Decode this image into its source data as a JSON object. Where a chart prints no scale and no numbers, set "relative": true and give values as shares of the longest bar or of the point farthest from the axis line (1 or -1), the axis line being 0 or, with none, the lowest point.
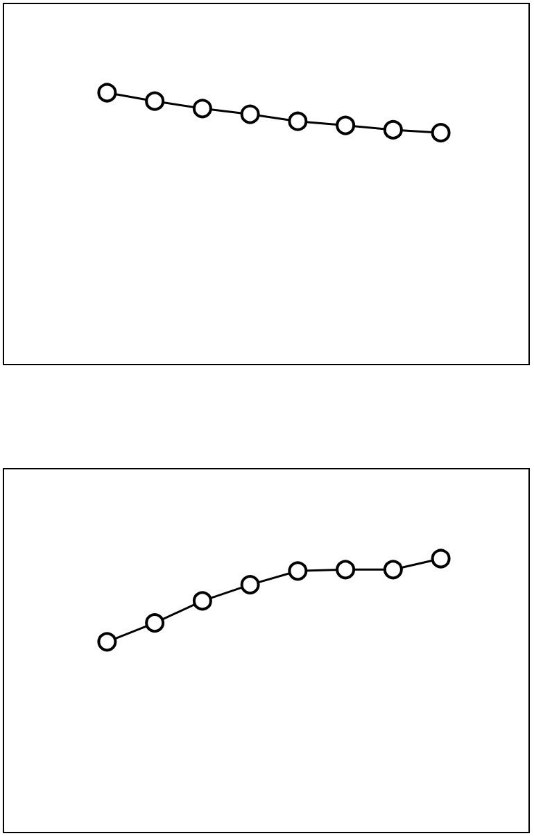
{
  "chart_data": [
    {
      "type": "line",
      "relative": true,
      "marker": "circle",
      "grid": false,
      "categories": [
        null,
        null,
        null,
        null,
        null,
        null,
        null,
        null
      ],
      "series": [
        {
          "color": "#000000",
          "values": [
            1,
            0.969,
            0.942,
            0.921,
            0.895,
            0.88,
            0.864,
            0.853
          ]
        }
      ]
    },
    {
      "type": "line",
      "relative": true,
      "marker": "circle",
      "grid": false,
      "categories": [
        null,
        null,
        null,
        null,
        null,
        null,
        null,
        null
      ],
      "series": [
        {
          "color": "#000000",
          "values": [
            0.697,
            0.766,
            0.846,
            0.905,
            0.955,
            0.96,
            0.96,
            1
          ]
        }
      ]
    }
  ]
}
